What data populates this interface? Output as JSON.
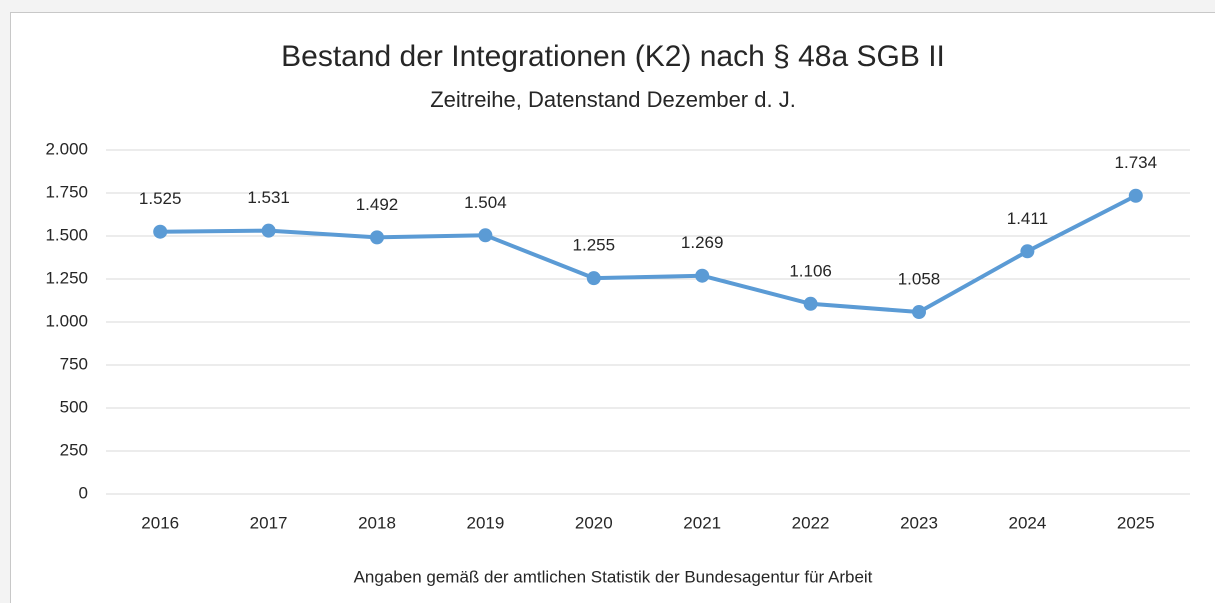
{
  "chart_data": {
    "type": "line",
    "title": "Bestand der Integrationen (K2) nach § 48a SGB II",
    "subtitle": "Zeitreihe, Datenstand Dezember d. J.",
    "note": "Angaben gemäß der amtlichen Statistik der Bundesagentur für Arbeit",
    "categories": [
      "2016",
      "2017",
      "2018",
      "2019",
      "2020",
      "2021",
      "2022",
      "2023",
      "2024",
      "2025"
    ],
    "series": [
      {
        "color": "#5b9bd5",
        "values": [
          1525,
          1531,
          1492,
          1504,
          1255,
          1269,
          1106,
          1058,
          1411,
          1734
        ],
        "value_labels": [
          "1.525",
          "1.531",
          "1.492",
          "1.504",
          "1.255",
          "1.269",
          "1.106",
          "1.058",
          "1.411",
          "1.734"
        ]
      }
    ],
    "ylim": [
      0,
      2000
    ],
    "yticks": [
      0,
      250,
      500,
      750,
      {
        "value": 1000,
        "label": "1.000"
      },
      {
        "value": 1250,
        "label": "1.250"
      },
      {
        "value": 1500,
        "label": "1.500"
      },
      {
        "value": 1750,
        "label": "1.750"
      },
      {
        "value": 2000,
        "label": "2.000"
      }
    ],
    "grid": true
  }
}
